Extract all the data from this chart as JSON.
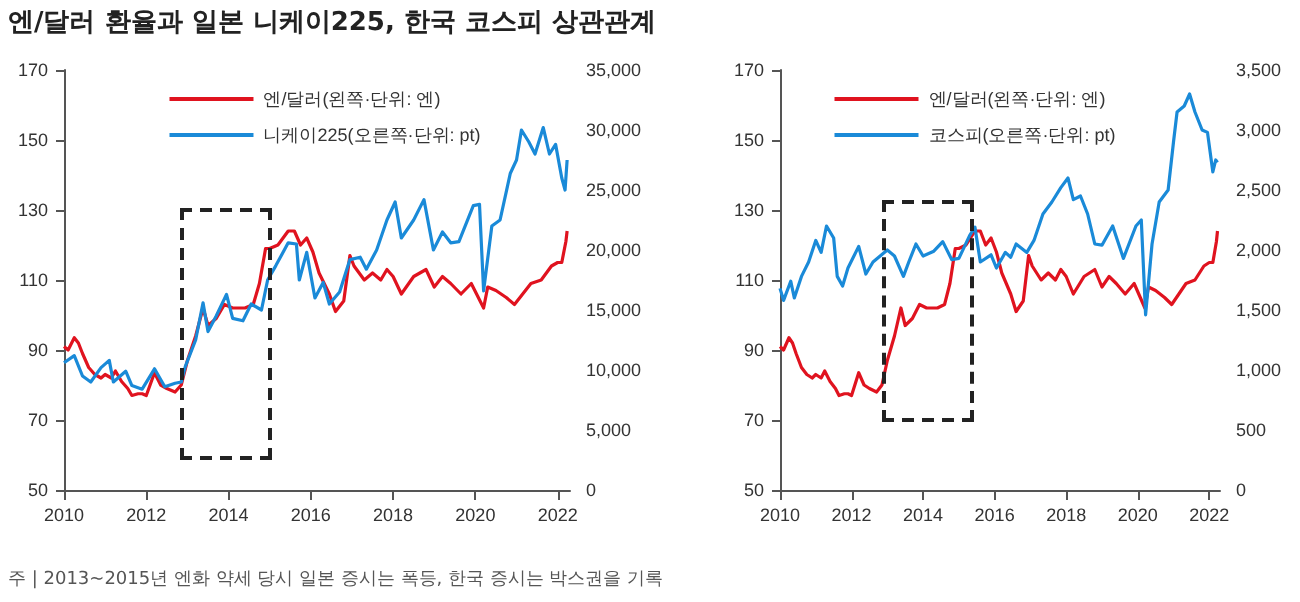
{
  "chart_data": [
    {
      "type": "line",
      "title": "엔/달러 환율과 일본 니케이225, 한국 코스피 상관관계",
      "annotations": [
        "주 | 2013~2015년 엔화 약세 당시 일본 증시는 폭등, 한국 증시는 박스권을 기록"
      ],
      "xlim": [
        2010,
        2022.3
      ],
      "xticks": [
        2010,
        2012,
        2014,
        2016,
        2018,
        2020,
        2022
      ],
      "ylim": [
        50,
        170
      ],
      "yticks": [
        50,
        70,
        90,
        110,
        130,
        150,
        170
      ],
      "y2lim": [
        0,
        35000
      ],
      "y2ticks": [
        {
          "value": 0,
          "label": "0"
        },
        {
          "value": 5000,
          "label": "5,000"
        },
        {
          "value": 10000,
          "label": "10,000"
        },
        {
          "value": 15000,
          "label": "15,000"
        },
        {
          "value": 20000,
          "label": "20,000"
        },
        {
          "value": 25000,
          "label": "25,000"
        },
        {
          "value": 30000,
          "label": "30,000"
        },
        {
          "value": 35000,
          "label": "35,000"
        }
      ],
      "grid": false,
      "legend": "top",
      "marker": "none",
      "line_style": "solid",
      "series": [
        {
          "name": "엔/달러(왼쪽·단위: 엔)",
          "color": "#e0131f",
          "x": [
            2010.0,
            2010.1,
            2010.25,
            2010.35,
            2010.45,
            2010.6,
            2010.75,
            2010.9,
            2011.0,
            2011.15,
            2011.25,
            2011.4,
            2011.55,
            2011.65,
            2011.8,
            2011.9,
            2012.0,
            2012.2,
            2012.35,
            2012.5,
            2012.7,
            2012.85,
            2013.0,
            2013.2,
            2013.38,
            2013.5,
            2013.7,
            2013.9,
            2014.1,
            2014.4,
            2014.6,
            2014.75,
            2014.9,
            2015.0,
            2015.2,
            2015.45,
            2015.6,
            2015.75,
            2015.9,
            2016.05,
            2016.2,
            2016.45,
            2016.6,
            2016.8,
            2016.95,
            2017.05,
            2017.3,
            2017.5,
            2017.7,
            2017.85,
            2018.0,
            2018.2,
            2018.5,
            2018.8,
            2019.0,
            2019.2,
            2019.4,
            2019.65,
            2019.9,
            2020.2,
            2020.3,
            2020.5,
            2020.75,
            2020.95,
            2021.15,
            2021.35,
            2021.6,
            2021.85,
            2022.0,
            2022.1,
            2022.2,
            2022.23
          ],
          "values": [
            91,
            90,
            93.5,
            92,
            89,
            85,
            83,
            82,
            83,
            82,
            84,
            81,
            79,
            77,
            77.5,
            77.5,
            77,
            83.5,
            80,
            79,
            78,
            80,
            87,
            94,
            102,
            97,
            99,
            103,
            102,
            102,
            103,
            109,
            119,
            119,
            120,
            124,
            124,
            120,
            122,
            118,
            112,
            106,
            101,
            104,
            117,
            114,
            110,
            112,
            110,
            113,
            111,
            106,
            111,
            113,
            108,
            111,
            109,
            106,
            109,
            102,
            108,
            107,
            105,
            103,
            106,
            109,
            110,
            114,
            115,
            115,
            121,
            124
          ]
        },
        {
          "name": "니케이225(오른쪽·단위: pt)",
          "color": "#1a8ad8",
          "axis": "y2",
          "x": [
            2010.0,
            2010.25,
            2010.45,
            2010.65,
            2010.9,
            2011.1,
            2011.2,
            2011.5,
            2011.65,
            2011.9,
            2012.2,
            2012.45,
            2012.7,
            2012.85,
            2012.95,
            2013.2,
            2013.38,
            2013.5,
            2013.7,
            2013.95,
            2014.1,
            2014.35,
            2014.55,
            2014.8,
            2014.95,
            2015.15,
            2015.45,
            2015.65,
            2015.72,
            2015.9,
            2016.1,
            2016.3,
            2016.45,
            2016.7,
            2016.95,
            2017.2,
            2017.35,
            2017.6,
            2017.85,
            2018.05,
            2018.2,
            2018.5,
            2018.75,
            2018.98,
            2019.2,
            2019.4,
            2019.6,
            2019.95,
            2020.1,
            2020.2,
            2020.4,
            2020.6,
            2020.85,
            2021.0,
            2021.12,
            2021.3,
            2021.45,
            2021.65,
            2021.8,
            2021.95,
            2022.1,
            2022.18,
            2022.23
          ],
          "values": [
            10600,
            11200,
            9500,
            9000,
            10200,
            10800,
            9000,
            9900,
            8700,
            8400,
            10100,
            8600,
            8900,
            9000,
            10300,
            12500,
            15600,
            13200,
            14500,
            16300,
            14300,
            14100,
            15500,
            15000,
            17500,
            18700,
            20600,
            20500,
            17500,
            19800,
            16000,
            17300,
            15500,
            16500,
            19200,
            19400,
            18400,
            20000,
            22500,
            24000,
            21000,
            22500,
            24200,
            20000,
            21500,
            20600,
            20700,
            23700,
            23800,
            16600,
            22000,
            22500,
            26400,
            27500,
            30000,
            29000,
            28000,
            30200,
            28000,
            28800,
            26000,
            25000,
            27500
          ]
        }
      ]
    },
    {
      "type": "line",
      "xlim": [
        2010,
        2022.3
      ],
      "xticks": [
        2010,
        2012,
        2014,
        2016,
        2018,
        2020,
        2022
      ],
      "ylim": [
        50,
        170
      ],
      "yticks": [
        50,
        70,
        90,
        110,
        130,
        150,
        170
      ],
      "y2lim": [
        0,
        3500
      ],
      "y2ticks": [
        {
          "value": 0,
          "label": "0"
        },
        500,
        {
          "value": 1000,
          "label": "1,000"
        },
        {
          "value": 1500,
          "label": "1,500"
        },
        {
          "value": 2000,
          "label": "2,000"
        },
        {
          "value": 2500,
          "label": "2,500"
        },
        {
          "value": 3000,
          "label": "3,000"
        },
        {
          "value": 3500,
          "label": "3,500"
        }
      ],
      "grid": false,
      "legend": "top",
      "marker": "none",
      "line_style": "solid",
      "series": [
        {
          "name": "엔/달러(왼쪽·단위: 엔)",
          "color": "#e0131f",
          "x": [
            2010.0,
            2010.1,
            2010.25,
            2010.35,
            2010.45,
            2010.6,
            2010.75,
            2010.9,
            2011.0,
            2011.15,
            2011.25,
            2011.4,
            2011.55,
            2011.65,
            2011.8,
            2011.9,
            2012.0,
            2012.2,
            2012.35,
            2012.5,
            2012.7,
            2012.85,
            2013.0,
            2013.2,
            2013.38,
            2013.5,
            2013.7,
            2013.9,
            2014.1,
            2014.4,
            2014.6,
            2014.75,
            2014.9,
            2015.0,
            2015.2,
            2015.45,
            2015.6,
            2015.75,
            2015.9,
            2016.05,
            2016.2,
            2016.45,
            2016.6,
            2016.8,
            2016.95,
            2017.05,
            2017.3,
            2017.5,
            2017.7,
            2017.85,
            2018.0,
            2018.2,
            2018.5,
            2018.8,
            2019.0,
            2019.2,
            2019.4,
            2019.65,
            2019.9,
            2020.2,
            2020.3,
            2020.5,
            2020.75,
            2020.95,
            2021.15,
            2021.35,
            2021.6,
            2021.85,
            2022.0,
            2022.1,
            2022.2,
            2022.23
          ],
          "values": [
            91,
            90,
            93.5,
            92,
            89,
            85,
            83,
            82,
            83,
            82,
            84,
            81,
            79,
            77,
            77.5,
            77.5,
            77,
            83.5,
            80,
            79,
            78,
            80,
            87,
            94,
            102,
            97,
            99,
            103,
            102,
            102,
            103,
            109,
            119,
            119,
            120,
            124,
            124,
            120,
            122,
            118,
            112,
            106,
            101,
            104,
            117,
            114,
            110,
            112,
            110,
            113,
            111,
            106,
            111,
            113,
            108,
            111,
            109,
            106,
            109,
            102,
            108,
            107,
            105,
            103,
            106,
            109,
            110,
            114,
            115,
            115,
            121,
            124
          ]
        },
        {
          "name": "코스피(오른쪽·단위: pt)",
          "color": "#1a8ad8",
          "axis": "y2",
          "x": [
            2010.0,
            2010.1,
            2010.3,
            2010.4,
            2010.6,
            2010.8,
            2011.0,
            2011.15,
            2011.3,
            2011.5,
            2011.6,
            2011.75,
            2011.9,
            2012.2,
            2012.4,
            2012.6,
            2012.8,
            2013.0,
            2013.2,
            2013.45,
            2013.6,
            2013.8,
            2014.0,
            2014.3,
            2014.55,
            2014.8,
            2015.0,
            2015.3,
            2015.45,
            2015.6,
            2015.9,
            2016.05,
            2016.3,
            2016.45,
            2016.6,
            2016.9,
            2017.1,
            2017.35,
            2017.6,
            2017.85,
            2018.05,
            2018.2,
            2018.4,
            2018.6,
            2018.8,
            2019.0,
            2019.3,
            2019.6,
            2019.95,
            2020.1,
            2020.22,
            2020.4,
            2020.6,
            2020.85,
            2021.0,
            2021.1,
            2021.3,
            2021.45,
            2021.6,
            2021.8,
            2021.95,
            2022.1,
            2022.18,
            2022.23
          ],
          "values": [
            1680,
            1580,
            1740,
            1600,
            1780,
            1900,
            2080,
            1980,
            2200,
            2100,
            1780,
            1700,
            1850,
            2030,
            1800,
            1900,
            1950,
            2000,
            1950,
            1780,
            1900,
            2050,
            1950,
            1990,
            2070,
            1920,
            1930,
            2120,
            2190,
            1900,
            1960,
            1850,
            1980,
            1940,
            2050,
            1980,
            2080,
            2300,
            2400,
            2520,
            2600,
            2420,
            2450,
            2300,
            2050,
            2040,
            2200,
            1930,
            2200,
            2250,
            1460,
            2050,
            2400,
            2500,
            2900,
            3150,
            3200,
            3300,
            3150,
            3000,
            2980,
            2650,
            2750,
            2730
          ]
        }
      ]
    }
  ]
}
